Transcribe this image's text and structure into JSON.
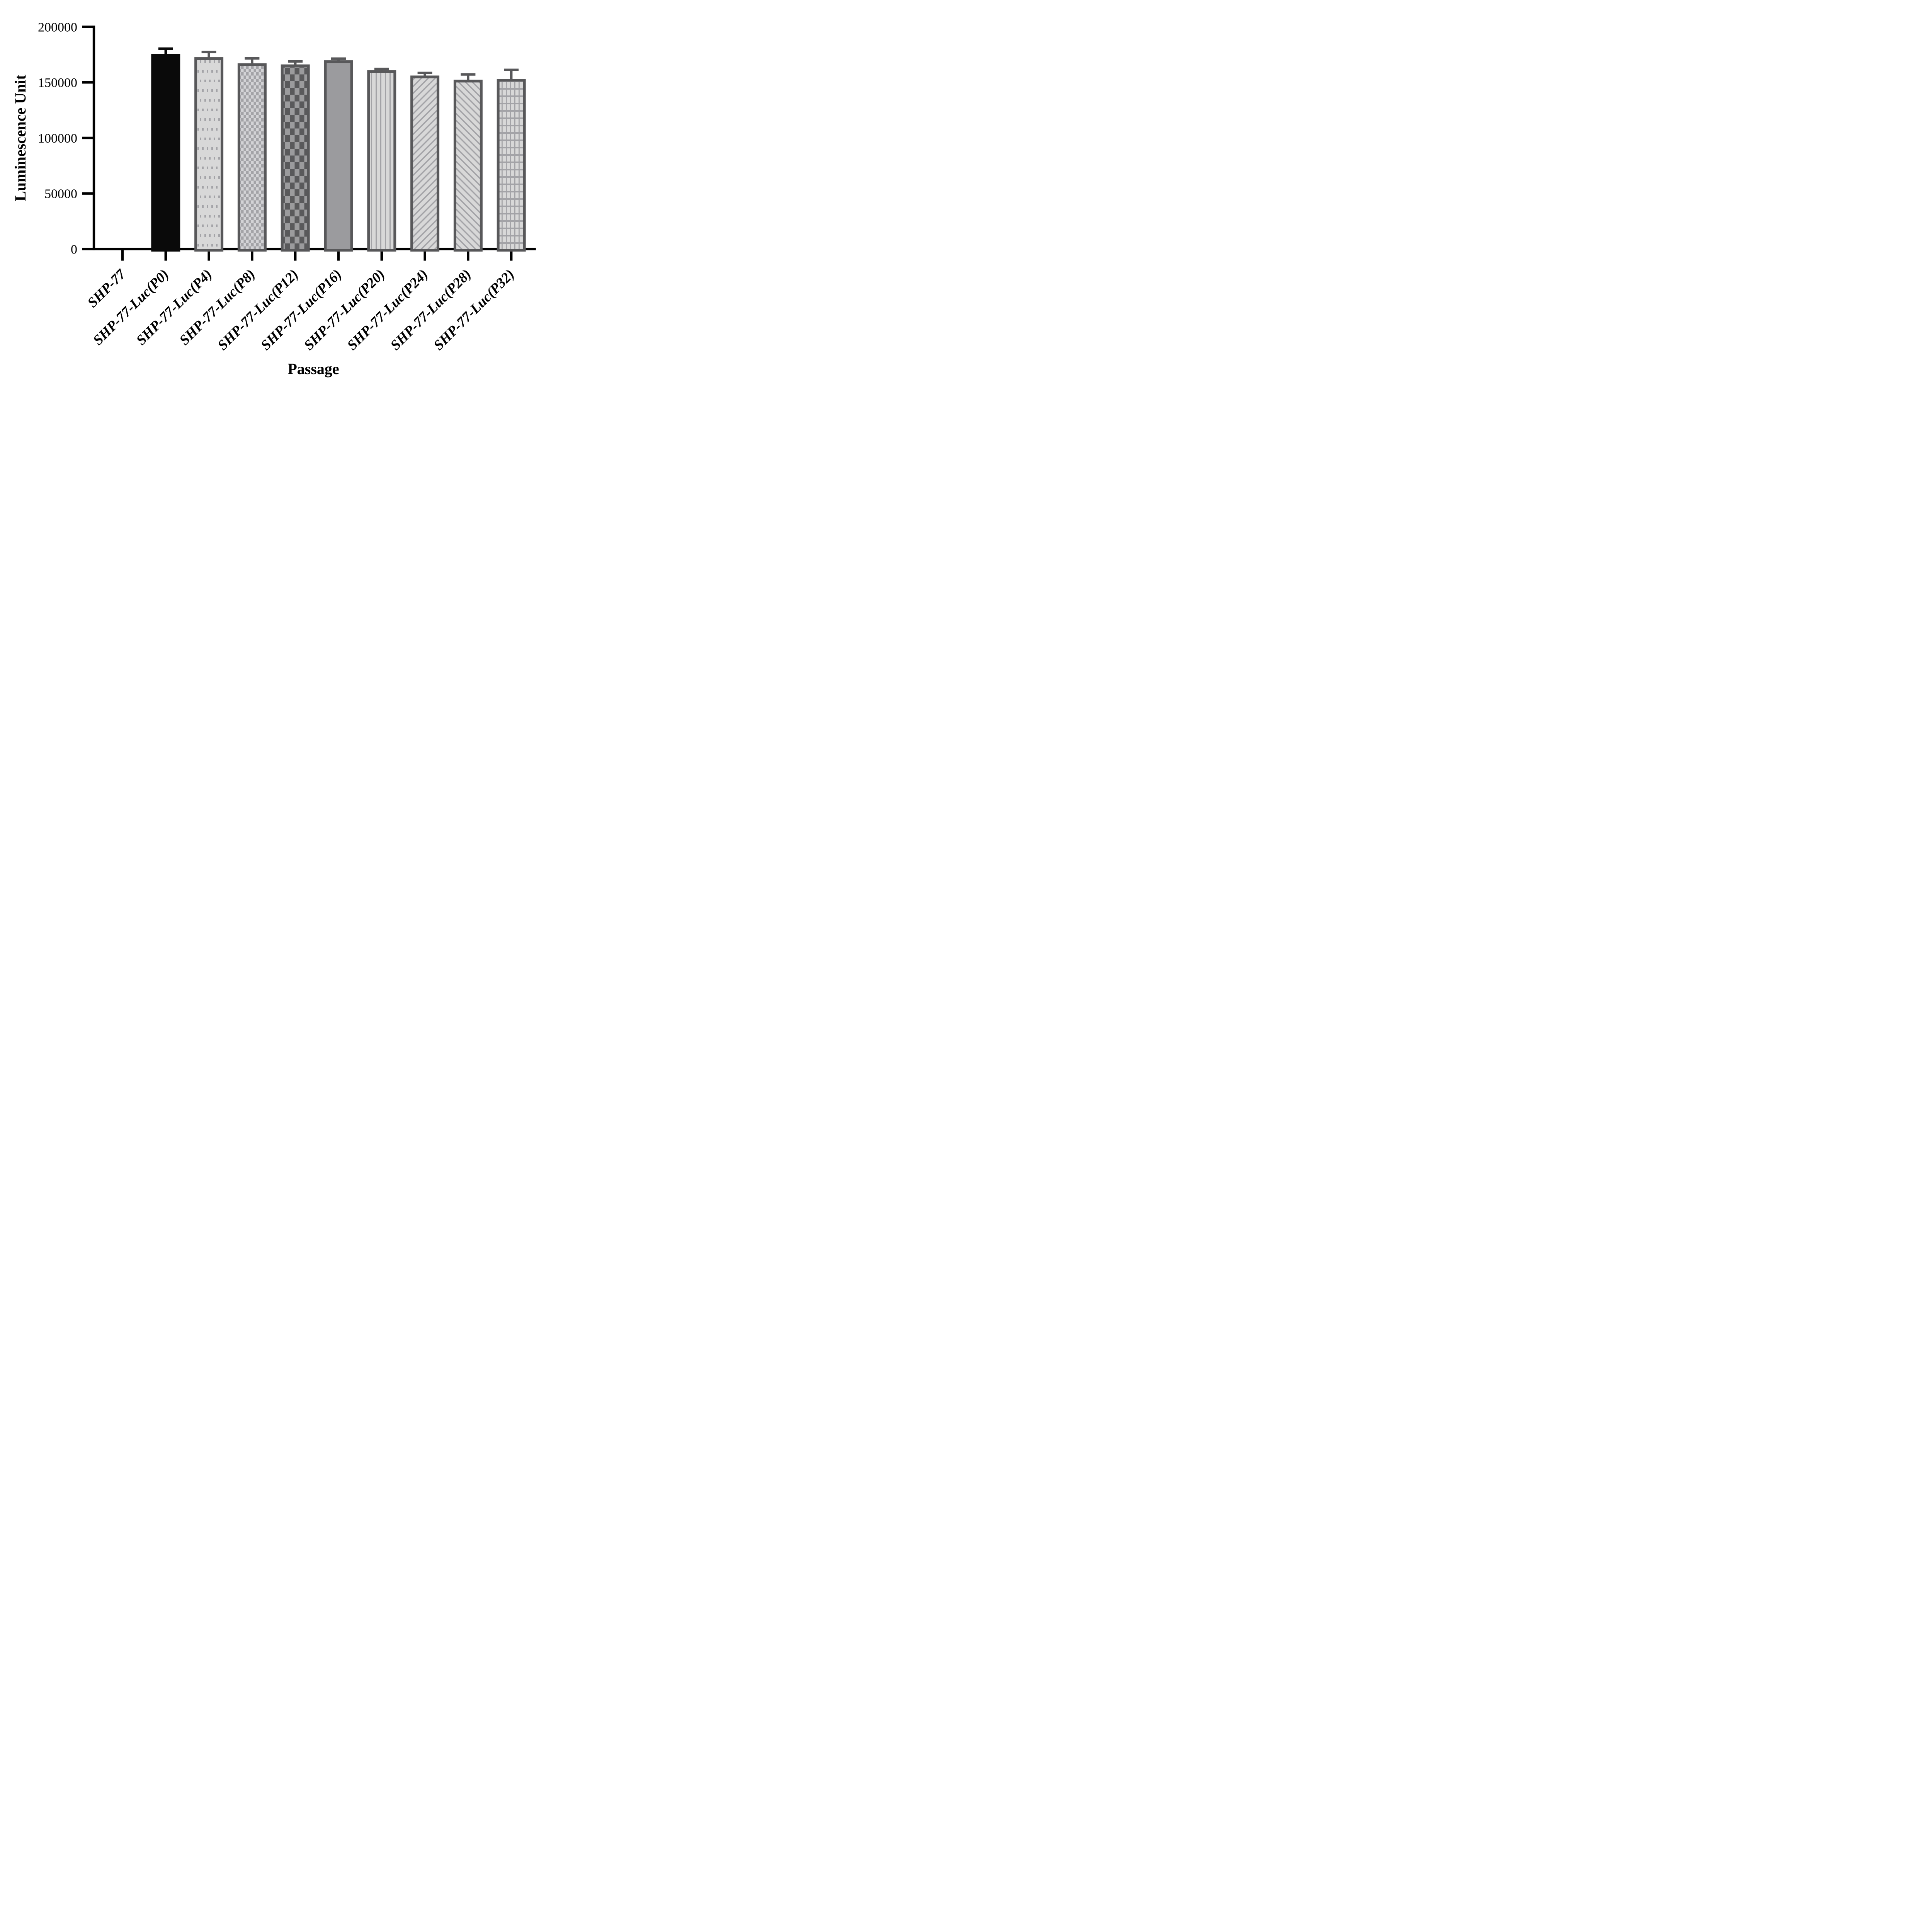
{
  "chart_data": {
    "type": "bar",
    "title": "",
    "xlabel": "Passage",
    "ylabel": "Luminescence Unit",
    "ylim": [
      0,
      200000
    ],
    "yticks": [
      0,
      50000,
      100000,
      150000,
      200000
    ],
    "categories": [
      "SHP-77",
      "SHP-77-Luc(P0)",
      "SHP-77-Luc(P4)",
      "SHP-77-Luc(P8)",
      "SHP-77-Luc(P12)",
      "SHP-77-Luc(P16)",
      "SHP-77-Luc(P20)",
      "SHP-77-Luc(P24)",
      "SHP-77-Luc(P28)",
      "SHP-77-Luc(P32)"
    ],
    "values": [
      0,
      175500,
      172500,
      167000,
      166000,
      169700,
      160700,
      156000,
      152200,
      153000
    ],
    "errors_plus": [
      0,
      6000,
      5900,
      5700,
      4000,
      2800,
      2500,
      3600,
      6100,
      9400
    ],
    "bar_styles": [
      "none",
      "solid-black",
      "dots",
      "checker-fine",
      "checker-coarse-dark",
      "solid-gray",
      "vertical-stripes",
      "diagonal-up",
      "diagonal-down",
      "grid"
    ],
    "error_bar_direction": "up-only",
    "grid": "off",
    "legend_position": "none",
    "colors": {
      "bar_black": "#0a0a0a",
      "pattern_border": "#58585a",
      "pattern_bg_light": "#d8d8d8",
      "pattern_mark": "#a3a3a7",
      "checker_dark_bg": "#59595b",
      "checker_dark_mark": "#9b9b9d",
      "solid_gray_fill": "#9b9b9e",
      "axis": "#000000"
    }
  }
}
